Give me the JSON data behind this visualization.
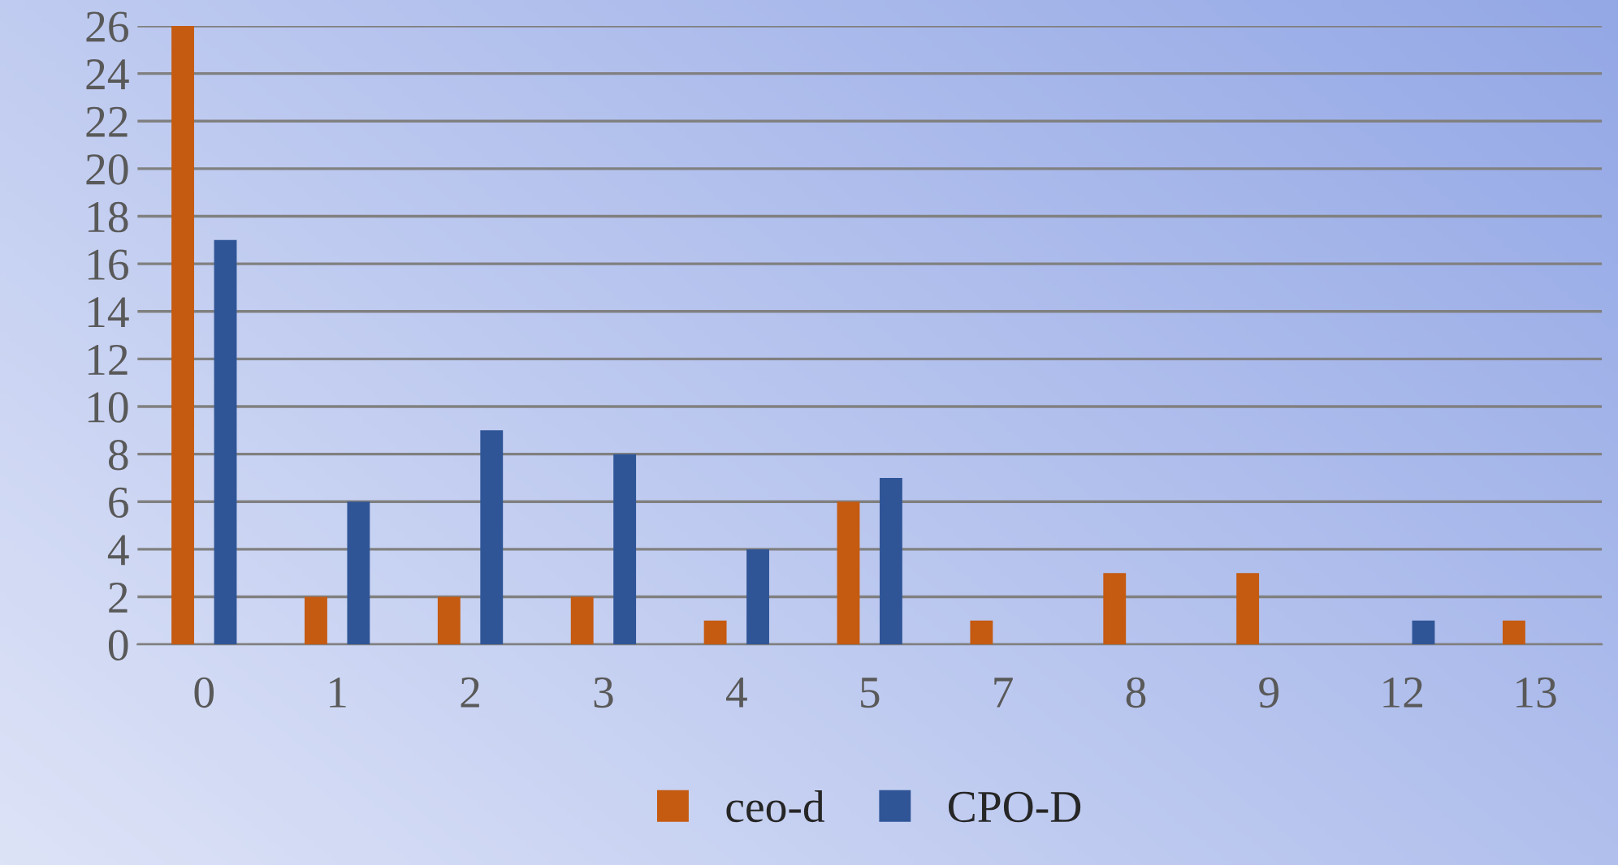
{
  "chart_data": {
    "type": "bar",
    "categories": [
      "0",
      "1",
      "2",
      "3",
      "4",
      "5",
      "7",
      "8",
      "9",
      "12",
      "13"
    ],
    "series": [
      {
        "name": "ceo-d",
        "color": "#c55a11",
        "values": [
          26,
          2,
          2,
          2,
          1,
          6,
          1,
          3,
          3,
          0,
          1
        ]
      },
      {
        "name": "CPO-D",
        "color": "#2f5597",
        "values": [
          17,
          6,
          9,
          8,
          4,
          7,
          0,
          0,
          0,
          1,
          0
        ]
      }
    ],
    "ylim": [
      0,
      26
    ],
    "yticks": [
      0,
      2,
      4,
      6,
      8,
      10,
      12,
      14,
      16,
      18,
      20,
      22,
      24,
      26
    ],
    "grid": "y",
    "legend": "bottom"
  }
}
